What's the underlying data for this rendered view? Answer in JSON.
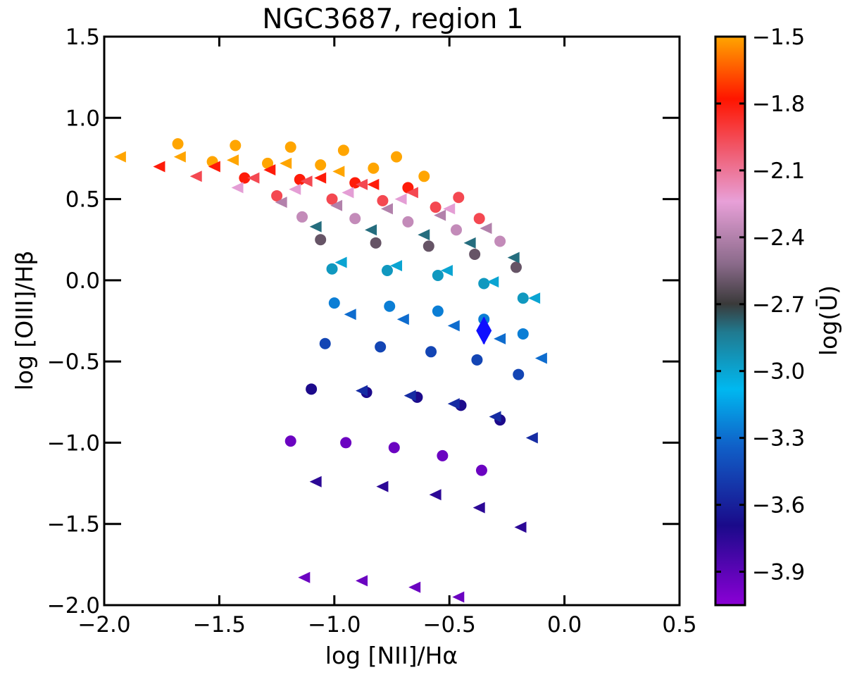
{
  "chart_data": {
    "type": "scatter",
    "title": "NGC3687, region 1",
    "xlabel": "log [NII]/Hα",
    "ylabel": "log [OIII]/Hβ",
    "xlim": [
      -2.0,
      0.5
    ],
    "ylim": [
      -2.0,
      1.5
    ],
    "x_ticks": [
      -2.0,
      -1.5,
      -1.0,
      -0.5,
      0.0,
      0.5
    ],
    "x_tick_labels": [
      "−2.0",
      "−1.5",
      "−1.0",
      "−0.5",
      "0.0",
      "0.5"
    ],
    "y_ticks": [
      -2.0,
      -1.5,
      -1.0,
      -0.5,
      0.0,
      0.5,
      1.0,
      1.5
    ],
    "y_tick_labels": [
      "−2.0",
      "−1.5",
      "−1.0",
      "−0.5",
      "0.0",
      "0.5",
      "1.0",
      "1.5"
    ],
    "grid": false,
    "colorbar": {
      "label": "log(Ū)",
      "range": [
        -4.05,
        -1.5
      ],
      "ticks": [
        -1.5,
        -1.8,
        -2.1,
        -2.4,
        -2.7,
        -3.0,
        -3.3,
        -3.6,
        -3.9
      ],
      "tick_labels": [
        "−1.5",
        "−1.8",
        "−2.1",
        "−2.4",
        "−2.7",
        "−3.0",
        "−3.3",
        "−3.6",
        "−3.9"
      ],
      "colors": [
        "#8b00d6",
        "#1a0a8a",
        "#1060c8",
        "#00b8f0",
        "#207a90",
        "#3a3a3a",
        "#8a6a8a",
        "#e8a0d8",
        "#f05a6e",
        "#ff1500",
        "#ffa500"
      ],
      "color_positions": [
        0.0,
        0.14,
        0.28,
        0.38,
        0.48,
        0.53,
        0.6,
        0.71,
        0.8,
        0.89,
        1.0
      ]
    },
    "series": [
      {
        "name": "circles",
        "marker": "circle",
        "points": [
          [
            -1.68,
            0.84,
            -1.5
          ],
          [
            -1.43,
            0.83,
            -1.5
          ],
          [
            -1.19,
            0.82,
            -1.5
          ],
          [
            -0.96,
            0.8,
            -1.5
          ],
          [
            -0.73,
            0.76,
            -1.5
          ],
          [
            -1.53,
            0.73,
            -1.5
          ],
          [
            -1.29,
            0.72,
            -1.5
          ],
          [
            -1.06,
            0.71,
            -1.5
          ],
          [
            -0.83,
            0.69,
            -1.5
          ],
          [
            -0.61,
            0.64,
            -1.5
          ],
          [
            -1.39,
            0.63,
            -1.8
          ],
          [
            -1.15,
            0.62,
            -1.8
          ],
          [
            -0.91,
            0.6,
            -1.8
          ],
          [
            -0.68,
            0.57,
            -1.8
          ],
          [
            -0.46,
            0.51,
            -1.95
          ],
          [
            -1.25,
            0.52,
            -1.95
          ],
          [
            -1.01,
            0.5,
            -1.95
          ],
          [
            -0.79,
            0.49,
            -1.95
          ],
          [
            -0.56,
            0.45,
            -1.95
          ],
          [
            -0.37,
            0.38,
            -1.95
          ],
          [
            -1.14,
            0.39,
            -2.35
          ],
          [
            -0.91,
            0.38,
            -2.35
          ],
          [
            -0.68,
            0.36,
            -2.35
          ],
          [
            -0.47,
            0.31,
            -2.35
          ],
          [
            -0.28,
            0.24,
            -2.35
          ],
          [
            -1.06,
            0.25,
            -2.6
          ],
          [
            -0.82,
            0.23,
            -2.6
          ],
          [
            -0.59,
            0.21,
            -2.6
          ],
          [
            -0.39,
            0.16,
            -2.6
          ],
          [
            -0.21,
            0.08,
            -2.6
          ],
          [
            -1.01,
            0.07,
            -2.95
          ],
          [
            -0.77,
            0.06,
            -2.95
          ],
          [
            -0.55,
            0.03,
            -2.95
          ],
          [
            -0.35,
            -0.02,
            -2.95
          ],
          [
            -0.18,
            -0.11,
            -2.95
          ],
          [
            -1.0,
            -0.14,
            -3.25
          ],
          [
            -0.76,
            -0.16,
            -3.25
          ],
          [
            -0.55,
            -0.19,
            -3.25
          ],
          [
            -0.35,
            -0.24,
            -3.25
          ],
          [
            -0.18,
            -0.33,
            -3.25
          ],
          [
            -1.04,
            -0.39,
            -3.45
          ],
          [
            -0.8,
            -0.41,
            -3.45
          ],
          [
            -0.58,
            -0.44,
            -3.45
          ],
          [
            -0.38,
            -0.49,
            -3.45
          ],
          [
            -0.2,
            -0.58,
            -3.45
          ],
          [
            -1.1,
            -0.67,
            -3.7
          ],
          [
            -0.86,
            -0.69,
            -3.7
          ],
          [
            -0.64,
            -0.72,
            -3.7
          ],
          [
            -0.45,
            -0.77,
            -3.7
          ],
          [
            -0.28,
            -0.86,
            -3.7
          ],
          [
            -1.19,
            -0.99,
            -3.95
          ],
          [
            -0.95,
            -1.0,
            -3.95
          ],
          [
            -0.74,
            -1.03,
            -3.95
          ],
          [
            -0.53,
            -1.08,
            -3.95
          ],
          [
            -0.36,
            -1.17,
            -3.95
          ]
        ]
      },
      {
        "name": "triangles",
        "marker": "triangle-left",
        "points": [
          [
            -1.93,
            0.76,
            -1.5
          ],
          [
            -1.67,
            0.76,
            -1.5
          ],
          [
            -1.44,
            0.74,
            -1.5
          ],
          [
            -1.21,
            0.72,
            -1.5
          ],
          [
            -0.98,
            0.67,
            -1.5
          ],
          [
            -1.76,
            0.7,
            -1.8
          ],
          [
            -1.52,
            0.7,
            -1.8
          ],
          [
            -1.28,
            0.68,
            -1.8
          ],
          [
            -1.06,
            0.63,
            -1.8
          ],
          [
            -0.83,
            0.59,
            -1.8
          ],
          [
            -1.6,
            0.64,
            -1.95
          ],
          [
            -1.35,
            0.63,
            -1.95
          ],
          [
            -1.12,
            0.61,
            -1.95
          ],
          [
            -0.88,
            0.59,
            -1.95
          ],
          [
            -0.66,
            0.54,
            -1.95
          ],
          [
            -1.42,
            0.57,
            -2.25
          ],
          [
            -1.17,
            0.56,
            -2.25
          ],
          [
            -0.94,
            0.54,
            -2.25
          ],
          [
            -0.71,
            0.5,
            -2.25
          ],
          [
            -0.5,
            0.44,
            -2.25
          ],
          [
            -1.23,
            0.48,
            -2.4
          ],
          [
            -0.99,
            0.46,
            -2.4
          ],
          [
            -0.77,
            0.44,
            -2.4
          ],
          [
            -0.54,
            0.4,
            -2.4
          ],
          [
            -0.34,
            0.32,
            -2.4
          ],
          [
            -1.08,
            0.33,
            -2.8
          ],
          [
            -0.84,
            0.31,
            -2.8
          ],
          [
            -0.61,
            0.28,
            -2.8
          ],
          [
            -0.41,
            0.23,
            -2.8
          ],
          [
            -0.22,
            0.14,
            -2.8
          ],
          [
            -0.97,
            0.11,
            -3.0
          ],
          [
            -0.73,
            0.09,
            -3.0
          ],
          [
            -0.51,
            0.06,
            -3.0
          ],
          [
            -0.31,
            -0.01,
            -3.0
          ],
          [
            -0.13,
            -0.11,
            -3.0
          ],
          [
            -0.93,
            -0.21,
            -3.3
          ],
          [
            -0.7,
            -0.24,
            -3.3
          ],
          [
            -0.48,
            -0.28,
            -3.3
          ],
          [
            -0.28,
            -0.36,
            -3.3
          ],
          [
            -0.1,
            -0.48,
            -3.3
          ],
          [
            -0.88,
            -0.68,
            -3.55
          ],
          [
            -0.67,
            -0.71,
            -3.55
          ],
          [
            -0.48,
            -0.76,
            -3.55
          ],
          [
            -0.3,
            -0.84,
            -3.55
          ],
          [
            -0.14,
            -0.97,
            -3.55
          ],
          [
            -1.08,
            -1.24,
            -3.75
          ],
          [
            -0.79,
            -1.27,
            -3.75
          ],
          [
            -0.56,
            -1.32,
            -3.75
          ],
          [
            -0.37,
            -1.4,
            -3.75
          ],
          [
            -0.19,
            -1.52,
            -3.75
          ],
          [
            -1.13,
            -1.83,
            -3.95
          ],
          [
            -0.88,
            -1.85,
            -3.95
          ],
          [
            -0.65,
            -1.89,
            -3.95
          ],
          [
            -0.46,
            -1.95,
            -3.95
          ]
        ]
      },
      {
        "name": "region 1",
        "marker": "diamond",
        "color": "#1010ff",
        "points": [
          [
            -0.35,
            -0.31
          ]
        ],
        "yerr": 0.08
      }
    ]
  }
}
